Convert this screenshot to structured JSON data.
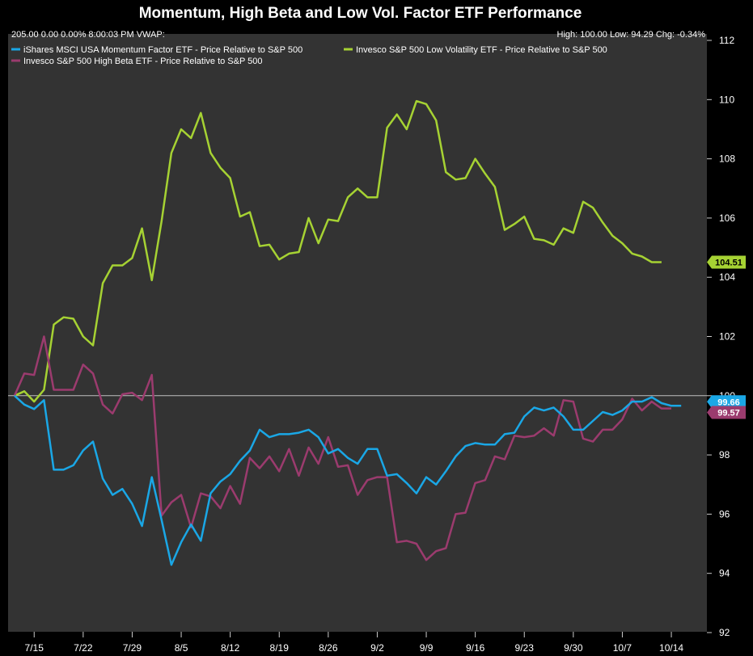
{
  "info": {
    "left": "205.00 0.00 0.00% 8:00:03 PM VWAP:",
    "right": "High: 100.00 Low: 94.29 Chg: -0.34%"
  },
  "chart_data": {
    "type": "line",
    "title": "Momentum, High Beta and Low Vol. Factor ETF Performance",
    "xlabel": "",
    "ylabel": "",
    "ylim": [
      92,
      112
    ],
    "yticks": [
      92,
      94,
      96,
      98,
      100,
      102,
      104,
      106,
      108,
      110,
      112
    ],
    "x_tick_labels": [
      "7/15",
      "7/22",
      "7/29",
      "8/5",
      "8/12",
      "8/19",
      "8/26",
      "9/2",
      "9/9",
      "9/16",
      "9/23",
      "9/30",
      "10/7",
      "10/14"
    ],
    "x_tick_index": [
      2,
      7,
      12,
      17,
      22,
      27,
      32,
      37,
      42,
      47,
      52,
      57,
      62,
      67
    ],
    "reference_value": 100,
    "grid": false,
    "legend_position": "top-left",
    "series": [
      {
        "name": "iShares MSCI USA Momentum Factor ETF - Price Relative to S&P 500",
        "color": "#1aa7e6",
        "last_label": "99.66",
        "values": [
          100.0,
          99.7,
          99.55,
          99.85,
          97.5,
          97.5,
          97.65,
          98.15,
          98.45,
          97.2,
          96.65,
          96.85,
          96.35,
          95.6,
          97.25,
          95.8,
          94.29,
          95.05,
          95.65,
          95.1,
          96.7,
          97.1,
          97.35,
          97.8,
          98.15,
          98.85,
          98.6,
          98.7,
          98.7,
          98.75,
          98.85,
          98.6,
          98.05,
          98.2,
          97.9,
          97.7,
          98.2,
          98.2,
          97.3,
          97.35,
          97.05,
          96.7,
          97.25,
          97.0,
          97.45,
          97.95,
          98.3,
          98.4,
          98.35,
          98.35,
          98.7,
          98.75,
          99.3,
          99.6,
          99.5,
          99.6,
          99.3,
          98.85,
          98.85,
          99.15,
          99.45,
          99.35,
          99.5,
          99.8,
          99.8,
          99.95,
          99.75,
          99.66,
          99.66
        ]
      },
      {
        "name": "Invesco S&P 500 Low Volatility ETF - Price Relative to S&P 500",
        "color": "#a6d233",
        "last_label": "104.51",
        "values": [
          100.0,
          100.15,
          99.8,
          100.2,
          102.4,
          102.65,
          102.6,
          102.0,
          101.7,
          103.8,
          104.4,
          104.4,
          104.65,
          105.65,
          103.9,
          105.9,
          108.2,
          109.0,
          108.7,
          109.55,
          108.2,
          107.7,
          107.35,
          106.05,
          106.2,
          105.05,
          105.1,
          104.6,
          104.8,
          104.85,
          106.0,
          105.15,
          105.95,
          105.9,
          106.7,
          107.0,
          106.7,
          106.7,
          109.05,
          109.5,
          109.0,
          109.95,
          109.85,
          109.3,
          107.55,
          107.3,
          107.35,
          108.0,
          107.5,
          107.05,
          105.6,
          105.8,
          106.05,
          105.3,
          105.25,
          105.1,
          105.65,
          105.5,
          106.55,
          106.35,
          105.85,
          105.4,
          105.15,
          104.8,
          104.7,
          104.51,
          104.51
        ]
      },
      {
        "name": "Invesco S&P 500 High Beta ETF - Price Relative to S&P 500",
        "color": "#9b3b6e",
        "last_label": "99.57",
        "values": [
          100.0,
          100.75,
          100.7,
          102.0,
          100.2,
          100.2,
          100.2,
          101.05,
          100.75,
          99.7,
          99.4,
          100.05,
          100.1,
          99.85,
          100.7,
          95.95,
          96.4,
          96.65,
          95.55,
          96.7,
          96.6,
          96.2,
          96.95,
          96.35,
          97.9,
          97.55,
          97.95,
          97.45,
          98.2,
          97.3,
          98.25,
          97.7,
          98.6,
          97.6,
          97.65,
          96.65,
          97.15,
          97.25,
          97.25,
          95.05,
          95.1,
          95.0,
          94.45,
          94.75,
          94.85,
          96.0,
          96.05,
          97.05,
          97.15,
          97.95,
          97.85,
          98.65,
          98.6,
          98.65,
          98.9,
          98.65,
          99.85,
          99.8,
          98.55,
          98.45,
          98.85,
          98.85,
          99.2,
          99.9,
          99.5,
          99.8,
          99.57,
          99.57
        ]
      }
    ]
  }
}
